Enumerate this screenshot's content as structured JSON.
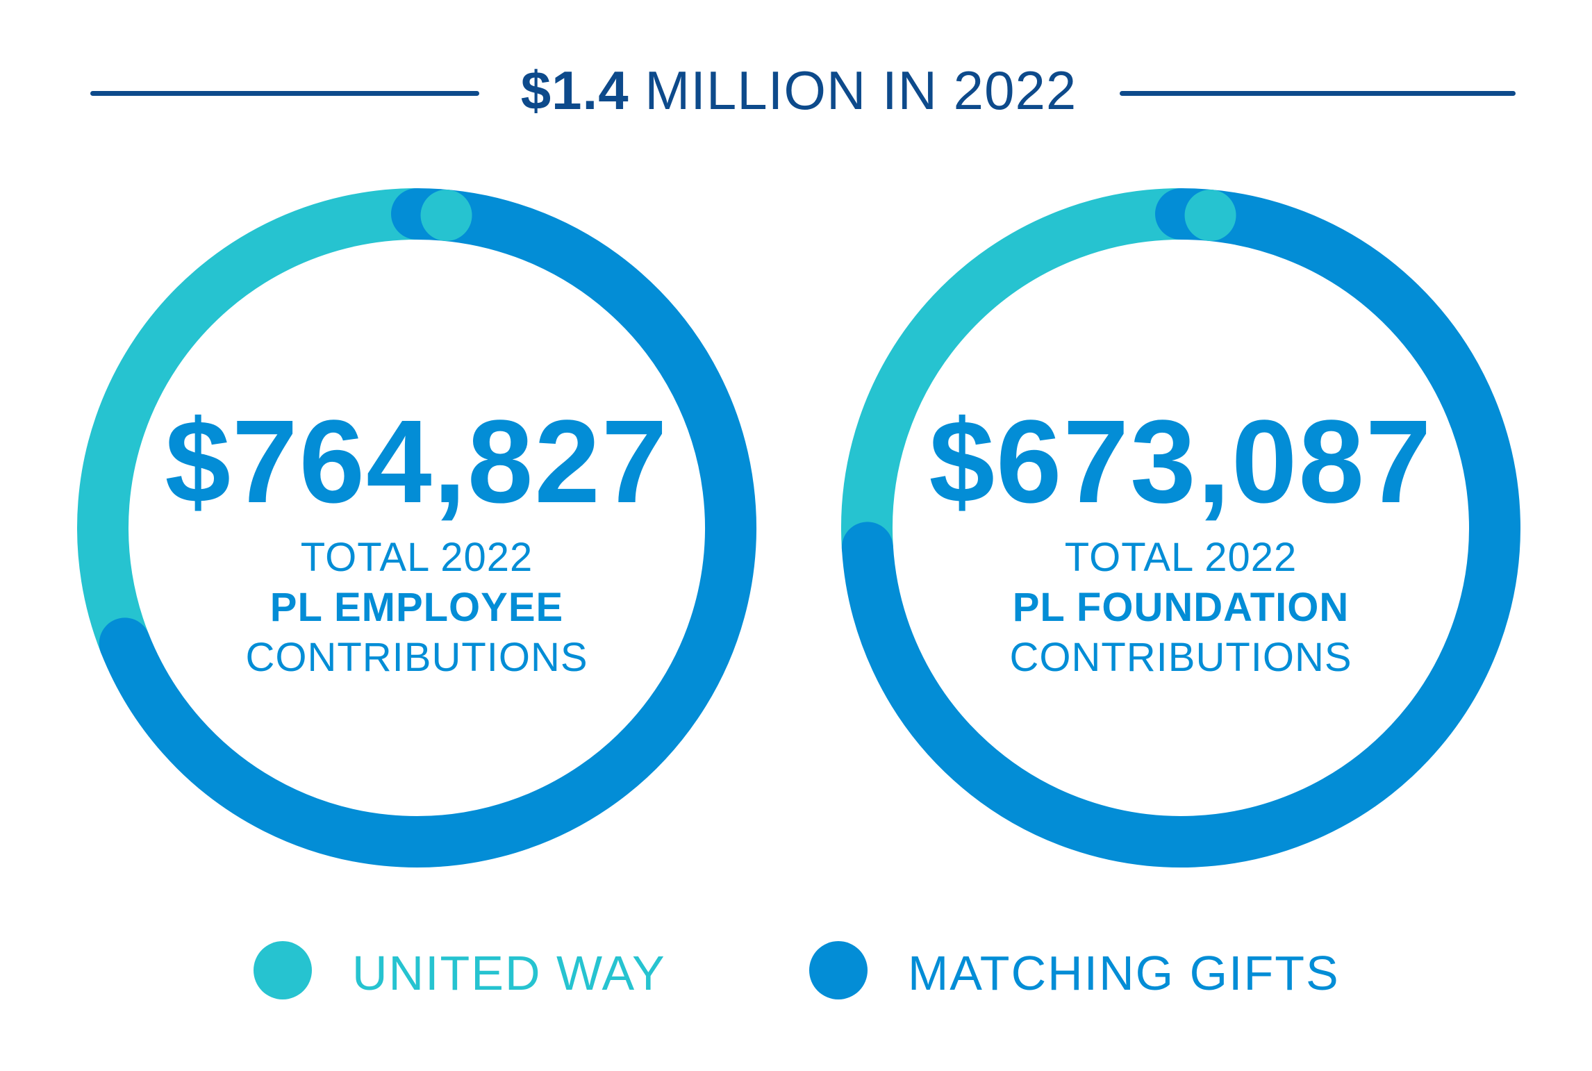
{
  "header": {
    "title_bold": "$1.4",
    "title_rest": " MILLION IN 2022",
    "line_color": "#0d4a8b"
  },
  "colors": {
    "united_way": "#26c3d0",
    "matching_gifts": "#038dd6",
    "text": "#038dd6"
  },
  "chart_data": [
    {
      "type": "pie",
      "donut": true,
      "center": {
        "amount": "$764,827",
        "line1": "TOTAL 2022",
        "line2": "PL EMPLOYEE",
        "line3": "CONTRIBUTIONS"
      },
      "categories": [
        "UNITED WAY",
        "MATCHING GIFTS"
      ],
      "values": [
        0.31,
        0.69
      ]
    },
    {
      "type": "pie",
      "donut": true,
      "center": {
        "amount": "$673,087",
        "line1": "TOTAL 2022",
        "line2": "PL FOUNDATION",
        "line3": "CONTRIBUTIONS"
      },
      "categories": [
        "UNITED WAY",
        "MATCHING GIFTS"
      ],
      "values": [
        0.26,
        0.74
      ]
    }
  ],
  "legend": {
    "items": [
      {
        "label": "UNITED WAY",
        "color": "#26c3d0"
      },
      {
        "label": "MATCHING GIFTS",
        "color": "#038dd6"
      }
    ]
  }
}
